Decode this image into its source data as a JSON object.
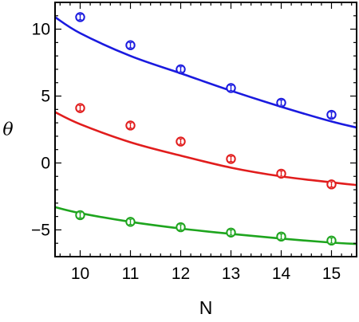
{
  "chart_data": {
    "type": "scatter",
    "xlabel": "N",
    "ylabel": "θ",
    "xlim": [
      9.5,
      15.5
    ],
    "ylim": [
      -7,
      12
    ],
    "xticks": [
      10,
      11,
      12,
      13,
      14,
      15
    ],
    "yticks": [
      -5,
      0,
      5,
      10
    ],
    "ytick_labels": [
      "−5",
      "0",
      "5",
      "10"
    ],
    "grid": false,
    "series": [
      {
        "color": "#1a1adf",
        "x": [
          10,
          11,
          12,
          13,
          14,
          15
        ],
        "y": [
          10.9,
          8.8,
          7.0,
          5.6,
          4.5,
          3.6
        ],
        "fit": [
          [
            9.5,
            10.9
          ],
          [
            10,
            9.7
          ],
          [
            11,
            8.0
          ],
          [
            12,
            6.7
          ],
          [
            13,
            5.4
          ],
          [
            14,
            4.2
          ],
          [
            15,
            3.1
          ],
          [
            15.5,
            2.65
          ]
        ]
      },
      {
        "color": "#e11d1d",
        "x": [
          10,
          11,
          12,
          13,
          14,
          15
        ],
        "y": [
          4.1,
          2.8,
          1.6,
          0.3,
          -0.8,
          -1.6
        ],
        "fit": [
          [
            9.5,
            3.8
          ],
          [
            10,
            2.9
          ],
          [
            11,
            1.55
          ],
          [
            12,
            0.55
          ],
          [
            13,
            -0.35
          ],
          [
            14,
            -1.0
          ],
          [
            15,
            -1.45
          ],
          [
            15.5,
            -1.65
          ]
        ]
      },
      {
        "color": "#1ea51e",
        "x": [
          10,
          11,
          12,
          13,
          14,
          15
        ],
        "y": [
          -3.9,
          -4.4,
          -4.8,
          -5.2,
          -5.5,
          -5.8
        ],
        "fit": [
          [
            9.5,
            -3.3
          ],
          [
            10,
            -3.75
          ],
          [
            11,
            -4.4
          ],
          [
            12,
            -4.9
          ],
          [
            13,
            -5.3
          ],
          [
            14,
            -5.65
          ],
          [
            15,
            -5.95
          ],
          [
            15.5,
            -6.05
          ]
        ]
      }
    ]
  }
}
